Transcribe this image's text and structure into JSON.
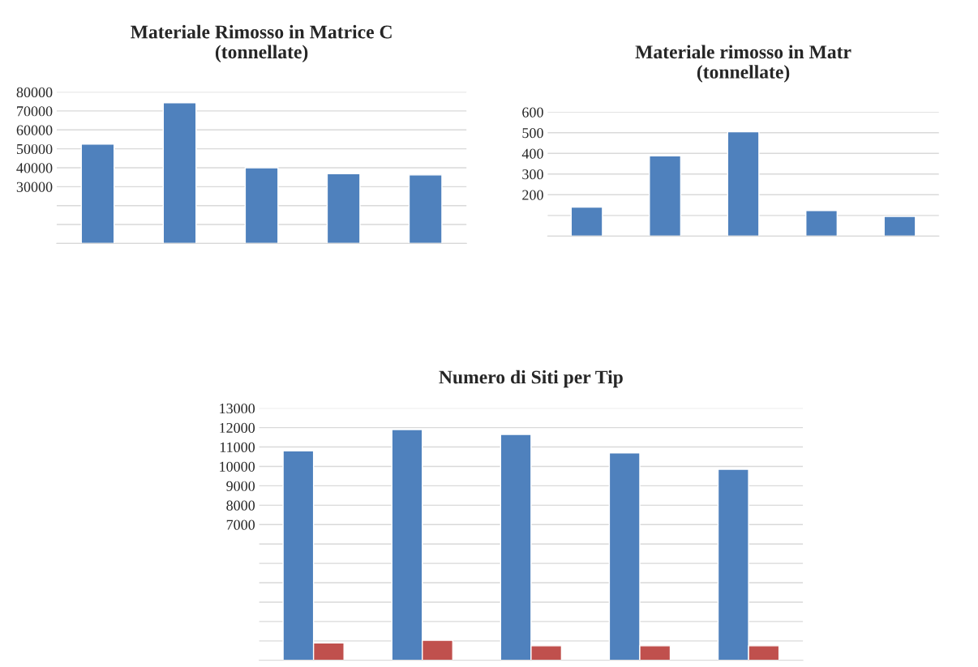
{
  "chart_data": [
    {
      "type": "bar",
      "title": "Materiale Rimosso in Matrice C\n(tonnellate)",
      "categories": [
        null,
        null,
        null,
        null,
        null
      ],
      "series": [
        {
          "color": "#4f81bd",
          "values": [
            52500,
            74300,
            40000,
            36900,
            36200
          ]
        }
      ],
      "ylim": [
        0,
        80000
      ],
      "yticks": [
        {
          "value": 0,
          "label": null
        },
        {
          "value": 10000,
          "label": null
        },
        {
          "value": 20000,
          "label": null
        },
        30000,
        40000,
        50000,
        60000,
        70000,
        80000
      ],
      "grid": "y",
      "tick_labels": "y"
    },
    {
      "type": "bar",
      "title": "Materiale rimosso in Matr\n(tonnellate)",
      "categories": [
        null,
        null,
        null,
        null,
        null
      ],
      "series": [
        {
          "color": "#4f81bd",
          "values": [
            140,
            388,
            505,
            124,
            95
          ]
        }
      ],
      "ylim": [
        0,
        600
      ],
      "yticks": [
        {
          "value": 0,
          "label": null
        },
        {
          "value": 100,
          "label": null
        },
        200,
        300,
        400,
        500,
        600
      ],
      "grid": "y",
      "tick_labels": "y"
    },
    {
      "type": "bar",
      "title": "Numero di Siti per Tip",
      "categories": [
        null,
        null,
        null,
        null,
        null
      ],
      "series": [
        {
          "color": "#4f81bd",
          "values": [
            10800,
            11900,
            11650,
            10700,
            9850
          ]
        },
        {
          "color": "#c0504d",
          "values": [
            900,
            1030,
            750,
            750,
            750
          ]
        }
      ],
      "ylim": [
        0,
        13000
      ],
      "yticks": [
        {
          "value": 0,
          "label": null
        },
        {
          "value": 1000,
          "label": null
        },
        {
          "value": 2000,
          "label": null
        },
        {
          "value": 3000,
          "label": null
        },
        {
          "value": 4000,
          "label": null
        },
        {
          "value": 5000,
          "label": null
        },
        {
          "value": 6000,
          "label": null
        },
        7000,
        8000,
        9000,
        10000,
        11000,
        12000,
        13000
      ],
      "grid": "y",
      "tick_labels": "y"
    }
  ]
}
